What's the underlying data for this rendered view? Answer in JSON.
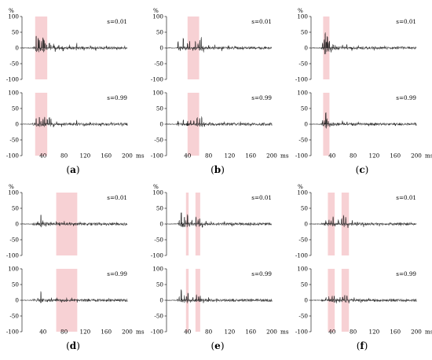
{
  "chart_data": [
    {
      "id": "a",
      "caption": "a",
      "type": "line",
      "y_unit_label": "%",
      "x_unit_label": "ms",
      "xlim": [
        0,
        200
      ],
      "ylim": [
        -100,
        100
      ],
      "x_ticks": [
        40,
        80,
        120,
        160,
        200
      ],
      "y_ticks": [
        100,
        50,
        0,
        -50,
        -100
      ],
      "highlight_ranges": [
        [
          25,
          48
        ]
      ],
      "x_ticks_shown_on_bottom_panel_only": true,
      "panels": [
        {
          "label": "s=0.01",
          "spikes": [
            [
              27,
              38
            ],
            [
              29,
              -6
            ],
            [
              31,
              28
            ],
            [
              33,
              22
            ],
            [
              35,
              -8
            ],
            [
              37,
              18
            ],
            [
              40,
              30
            ],
            [
              42,
              24
            ],
            [
              44,
              12
            ],
            [
              47,
              10
            ],
            [
              52,
              14
            ],
            [
              55,
              8
            ],
            [
              60,
              10
            ],
            [
              63,
              -12
            ],
            [
              70,
              8
            ],
            [
              78,
              -9
            ],
            [
              90,
              6
            ],
            [
              104,
              12
            ],
            [
              118,
              -8
            ],
            [
              130,
              6
            ],
            [
              140,
              -5
            ],
            [
              160,
              5
            ],
            [
              180,
              -4
            ],
            [
              195,
              3
            ]
          ]
        },
        {
          "label": "s=0.99",
          "spikes": [
            [
              27,
              16
            ],
            [
              31,
              -6
            ],
            [
              33,
              22
            ],
            [
              36,
              10
            ],
            [
              40,
              14
            ],
            [
              43,
              20
            ],
            [
              48,
              12
            ],
            [
              52,
              20
            ],
            [
              55,
              14
            ],
            [
              60,
              -6
            ],
            [
              66,
              8
            ],
            [
              75,
              -6
            ],
            [
              90,
              5
            ],
            [
              104,
              10
            ],
            [
              118,
              -6
            ],
            [
              130,
              5
            ],
            [
              150,
              -4
            ],
            [
              170,
              4
            ],
            [
              190,
              -3
            ]
          ]
        }
      ]
    },
    {
      "id": "b",
      "caption": "b",
      "type": "line",
      "y_unit_label": "%",
      "x_unit_label": "ms",
      "xlim": [
        0,
        200
      ],
      "ylim": [
        -100,
        100
      ],
      "x_ticks": [
        40,
        80,
        120,
        160,
        200
      ],
      "y_ticks": [
        100,
        50,
        0,
        -50,
        -100
      ],
      "highlight_ranges": [
        [
          40,
          62
        ]
      ],
      "x_ticks_shown_on_bottom_panel_only": true,
      "panels": [
        {
          "label": "s=0.01",
          "spikes": [
            [
              22,
              20
            ],
            [
              26,
              -8
            ],
            [
              32,
              28
            ],
            [
              36,
              -6
            ],
            [
              40,
              12
            ],
            [
              44,
              18
            ],
            [
              50,
              -8
            ],
            [
              55,
              20
            ],
            [
              60,
              10
            ],
            [
              63,
              22
            ],
            [
              66,
              30
            ],
            [
              70,
              -10
            ],
            [
              80,
              8
            ],
            [
              92,
              6
            ],
            [
              105,
              -6
            ],
            [
              118,
              5
            ],
            [
              130,
              6
            ],
            [
              145,
              -4
            ],
            [
              160,
              4
            ],
            [
              180,
              -3
            ]
          ]
        },
        {
          "label": "s=0.99",
          "spikes": [
            [
              22,
              10
            ],
            [
              32,
              12
            ],
            [
              40,
              8
            ],
            [
              46,
              10
            ],
            [
              52,
              12
            ],
            [
              58,
              18
            ],
            [
              63,
              16
            ],
            [
              67,
              20
            ],
            [
              72,
              -8
            ],
            [
              82,
              6
            ],
            [
              95,
              -5
            ],
            [
              110,
              5
            ],
            [
              125,
              -4
            ],
            [
              140,
              4
            ],
            [
              160,
              -3
            ],
            [
              185,
              3
            ]
          ]
        }
      ]
    },
    {
      "id": "c",
      "caption": "c",
      "type": "line",
      "y_unit_label": "%",
      "x_unit_label": "ms",
      "xlim": [
        0,
        200
      ],
      "ylim": [
        -100,
        100
      ],
      "x_ticks": [
        40,
        80,
        120,
        160,
        200
      ],
      "y_ticks": [
        100,
        50,
        0,
        -50,
        -100
      ],
      "highlight_ranges": [
        [
          23,
          35
        ]
      ],
      "x_ticks_shown_on_bottom_panel_only": true,
      "panels": [
        {
          "label": "s=0.01",
          "spikes": [
            [
              22,
              12
            ],
            [
              25,
              26
            ],
            [
              27,
              45
            ],
            [
              29,
              20
            ],
            [
              31,
              35
            ],
            [
              33,
              14
            ],
            [
              35,
              20
            ],
            [
              38,
              -10
            ],
            [
              42,
              10
            ],
            [
              46,
              8
            ],
            [
              52,
              -6
            ],
            [
              60,
              6
            ],
            [
              68,
              8
            ],
            [
              78,
              -5
            ],
            [
              90,
              5
            ],
            [
              105,
              4
            ],
            [
              120,
              -4
            ],
            [
              140,
              3
            ],
            [
              165,
              -3
            ],
            [
              190,
              2
            ]
          ]
        },
        {
          "label": "s=0.99",
          "spikes": [
            [
              22,
              8
            ],
            [
              25,
              10
            ],
            [
              28,
              36
            ],
            [
              30,
              14
            ],
            [
              33,
              8
            ],
            [
              36,
              -5
            ],
            [
              42,
              6
            ],
            [
              50,
              5
            ],
            [
              60,
              8
            ],
            [
              68,
              6
            ],
            [
              78,
              -4
            ],
            [
              90,
              4
            ],
            [
              110,
              -3
            ],
            [
              130,
              3
            ],
            [
              160,
              -2
            ],
            [
              185,
              2
            ]
          ]
        }
      ]
    },
    {
      "id": "d",
      "caption": "d",
      "type": "line",
      "y_unit_label": "%",
      "x_unit_label": "ms",
      "xlim": [
        0,
        200
      ],
      "ylim": [
        -100,
        100
      ],
      "x_ticks": [
        40,
        80,
        120,
        160,
        200
      ],
      "y_ticks": [
        100,
        50,
        0,
        -50,
        -100
      ],
      "highlight_ranges": [
        [
          65,
          105
        ]
      ],
      "x_ticks_shown_on_bottom_panel_only": true,
      "panels": [
        {
          "label": "s=0.01",
          "spikes": [
            [
              30,
              6
            ],
            [
              36,
              28
            ],
            [
              40,
              8
            ],
            [
              46,
              -5
            ],
            [
              55,
              5
            ],
            [
              65,
              6
            ],
            [
              72,
              -6
            ],
            [
              80,
              5
            ],
            [
              90,
              6
            ],
            [
              98,
              -5
            ],
            [
              110,
              4
            ],
            [
              125,
              -3
            ],
            [
              140,
              3
            ],
            [
              160,
              -2
            ],
            [
              180,
              2
            ]
          ]
        },
        {
          "label": "s=0.99",
          "spikes": [
            [
              30,
              5
            ],
            [
              36,
              24
            ],
            [
              40,
              6
            ],
            [
              48,
              -4
            ],
            [
              56,
              4
            ],
            [
              66,
              5
            ],
            [
              75,
              -5
            ],
            [
              85,
              4
            ],
            [
              95,
              5
            ],
            [
              105,
              -3
            ],
            [
              120,
              3
            ],
            [
              140,
              -2
            ],
            [
              165,
              2
            ]
          ]
        }
      ]
    },
    {
      "id": "e",
      "caption": "e",
      "type": "line",
      "y_unit_label": "%",
      "x_unit_label": "ms",
      "xlim": [
        0,
        200
      ],
      "ylim": [
        -100,
        100
      ],
      "x_ticks": [
        40,
        80,
        120,
        160,
        200
      ],
      "y_ticks": [
        100,
        50,
        0,
        -50,
        -100
      ],
      "highlight_ranges": [
        [
          37,
          42
        ],
        [
          55,
          64
        ]
      ],
      "x_ticks_shown_on_bottom_panel_only": true,
      "panels": [
        {
          "label": "s=0.01",
          "spikes": [
            [
              24,
              10
            ],
            [
              28,
              34
            ],
            [
              31,
              -8
            ],
            [
              34,
              22
            ],
            [
              37,
              12
            ],
            [
              40,
              26
            ],
            [
              44,
              -6
            ],
            [
              48,
              10
            ],
            [
              56,
              20
            ],
            [
              60,
              10
            ],
            [
              63,
              16
            ],
            [
              68,
              -8
            ],
            [
              75,
              8
            ],
            [
              85,
              6
            ],
            [
              95,
              -5
            ],
            [
              110,
              5
            ],
            [
              125,
              -4
            ],
            [
              140,
              4
            ],
            [
              160,
              -3
            ],
            [
              185,
              2
            ]
          ]
        },
        {
          "label": "s=0.99",
          "spikes": [
            [
              24,
              8
            ],
            [
              28,
              32
            ],
            [
              31,
              -6
            ],
            [
              34,
              16
            ],
            [
              38,
              10
            ],
            [
              41,
              22
            ],
            [
              45,
              -5
            ],
            [
              50,
              8
            ],
            [
              57,
              14
            ],
            [
              61,
              10
            ],
            [
              64,
              12
            ],
            [
              70,
              -6
            ],
            [
              80,
              6
            ],
            [
              95,
              -4
            ],
            [
              110,
              4
            ],
            [
              130,
              -3
            ],
            [
              150,
              3
            ],
            [
              175,
              -2
            ]
          ]
        }
      ]
    },
    {
      "id": "f",
      "caption": "f",
      "type": "line",
      "y_unit_label": "%",
      "x_unit_label": "ms",
      "xlim": [
        0,
        200
      ],
      "ylim": [
        -100,
        100
      ],
      "x_ticks": [
        40,
        80,
        120,
        160,
        200
      ],
      "y_ticks": [
        100,
        50,
        0,
        -50,
        -100
      ],
      "highlight_ranges": [
        [
          32,
          45
        ],
        [
          58,
          72
        ]
      ],
      "x_ticks_shown_on_bottom_panel_only": true,
      "panels": [
        {
          "label": "s=0.01",
          "spikes": [
            [
              28,
              8
            ],
            [
              34,
              12
            ],
            [
              38,
              8
            ],
            [
              42,
              22
            ],
            [
              46,
              -6
            ],
            [
              52,
              10
            ],
            [
              58,
              14
            ],
            [
              62,
              24
            ],
            [
              66,
              18
            ],
            [
              70,
              -8
            ],
            [
              78,
              8
            ],
            [
              88,
              6
            ],
            [
              100,
              -5
            ],
            [
              115,
              5
            ],
            [
              130,
              -4
            ],
            [
              150,
              3
            ],
            [
              170,
              -3
            ],
            [
              190,
              2
            ]
          ]
        },
        {
          "label": "s=0.99",
          "spikes": [
            [
              28,
              6
            ],
            [
              34,
              8
            ],
            [
              40,
              10
            ],
            [
              44,
              14
            ],
            [
              48,
              -5
            ],
            [
              55,
              8
            ],
            [
              60,
              10
            ],
            [
              64,
              16
            ],
            [
              68,
              12
            ],
            [
              72,
              -6
            ],
            [
              82,
              6
            ],
            [
              95,
              -4
            ],
            [
              110,
              4
            ],
            [
              130,
              -3
            ],
            [
              150,
              3
            ],
            [
              180,
              -2
            ]
          ]
        }
      ]
    }
  ]
}
